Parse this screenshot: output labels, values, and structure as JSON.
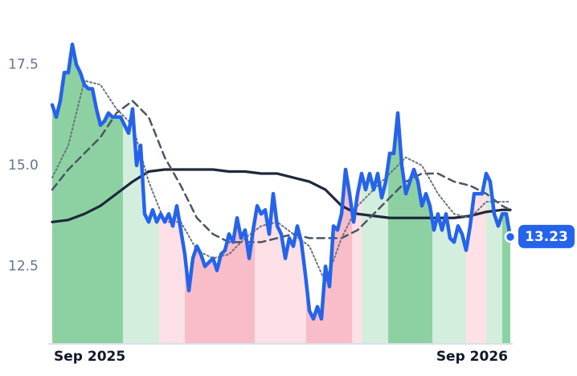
{
  "chart_data": {
    "type": "line",
    "xlim": [
      0,
      114
    ],
    "ylim": [
      10.6,
      19.1
    ],
    "xticks": [
      {
        "value": 0,
        "label": "Sep 2025"
      },
      {
        "value": 114,
        "label": "Sep 2026"
      }
    ],
    "yticks": [
      12.5,
      {
        "value": 15,
        "label": "15.0"
      },
      17.5
    ],
    "regions": [
      {
        "start": 0,
        "end": 17.6,
        "color": "#8dd1a3"
      },
      {
        "start": 17.6,
        "end": 26.6,
        "color": "#d4eedd"
      },
      {
        "start": 26.6,
        "end": 33,
        "color": "#fde1e6"
      },
      {
        "start": 33,
        "end": 50.4,
        "color": "#f8bdc8"
      },
      {
        "start": 50.4,
        "end": 63.2,
        "color": "#fde1e6"
      },
      {
        "start": 63.2,
        "end": 74.6,
        "color": "#f8bdc8"
      },
      {
        "start": 74.6,
        "end": 77,
        "color": "#fde1e6"
      },
      {
        "start": 77,
        "end": 83.6,
        "color": "#d4eedd"
      },
      {
        "start": 83.6,
        "end": 94.6,
        "color": "#8dd1a3"
      },
      {
        "start": 94.6,
        "end": 103,
        "color": "#d4eedd"
      },
      {
        "start": 103,
        "end": 108,
        "color": "#fde1e6"
      },
      {
        "start": 108,
        "end": 112,
        "color": "#d4eedd"
      },
      {
        "start": 112,
        "end": 114,
        "color": "#8dd1a3"
      }
    ],
    "series": [
      {
        "color": "#2563eb",
        "width": 4.5,
        "dash": "none",
        "x": [
          0,
          1,
          2,
          3,
          4,
          5,
          6,
          7,
          8,
          9,
          10,
          11,
          12,
          13,
          14,
          15,
          16,
          17,
          18,
          19,
          20,
          21,
          22,
          23,
          24,
          25,
          26,
          27,
          28,
          29,
          30,
          31,
          32,
          33,
          34,
          35,
          36,
          37,
          38,
          39,
          40,
          41,
          42,
          43,
          44,
          45,
          46,
          47,
          48,
          49,
          50,
          51,
          52,
          53,
          54,
          55,
          56,
          57,
          58,
          59,
          60,
          61,
          62,
          63,
          64,
          65,
          66,
          67,
          68,
          69,
          70,
          71,
          72,
          73,
          74,
          75,
          76,
          77,
          78,
          79,
          80,
          81,
          82,
          83,
          84,
          85,
          86,
          87,
          88,
          89,
          90,
          91,
          92,
          93,
          94,
          95,
          96,
          97,
          98,
          99,
          100,
          101,
          102,
          103,
          104,
          105,
          106,
          107,
          108,
          109,
          110,
          111,
          112,
          113,
          114
        ],
        "values": [
          16.5,
          16.2,
          16.6,
          17.3,
          17.3,
          18.0,
          17.5,
          17.3,
          17.0,
          16.9,
          16.9,
          16.4,
          16.0,
          16.1,
          16.3,
          16.2,
          16.2,
          16.2,
          16.0,
          15.8,
          16.4,
          15.0,
          15.5,
          13.8,
          13.6,
          13.9,
          13.6,
          13.8,
          13.6,
          13.8,
          13.5,
          14.0,
          13.4,
          12.8,
          11.9,
          12.7,
          13.0,
          12.8,
          12.5,
          12.6,
          12.7,
          12.4,
          12.8,
          12.9,
          13.3,
          13.1,
          13.7,
          13.2,
          13.4,
          12.7,
          13.4,
          14.0,
          13.8,
          13.9,
          13.3,
          14.3,
          13.5,
          13.3,
          12.7,
          13.2,
          13.0,
          13.5,
          13.1,
          12.3,
          11.4,
          11.2,
          11.5,
          11.2,
          12.5,
          12.0,
          13.5,
          13.4,
          13.8,
          14.9,
          14.3,
          13.6,
          14.3,
          14.8,
          14.4,
          14.8,
          14.4,
          14.8,
          14.2,
          14.6,
          15.3,
          15.3,
          16.3,
          15.0,
          14.3,
          14.6,
          14.9,
          14.6,
          14.0,
          14.3,
          14.0,
          13.4,
          13.8,
          13.4,
          13.8,
          13.2,
          13.1,
          13.5,
          13.3,
          12.9,
          13.5,
          14.3,
          14.3,
          14.3,
          14.8,
          14.6,
          13.8,
          13.5,
          13.8,
          13.8,
          13.23
        ]
      },
      {
        "color": "#6b7280",
        "width": 2,
        "dash": "2,3",
        "x": [
          0,
          4,
          8,
          12,
          16,
          20,
          24,
          28,
          32,
          36,
          40,
          44,
          48,
          52,
          56,
          60,
          64,
          68,
          72,
          76,
          80,
          84,
          88,
          92,
          96,
          100,
          104,
          108,
          112,
          114
        ],
        "values": [
          14.7,
          15.5,
          17.1,
          17.0,
          16.4,
          16.0,
          14.6,
          13.6,
          13.6,
          12.9,
          12.7,
          12.8,
          13.2,
          13.5,
          13.6,
          13.3,
          13.0,
          12.1,
          13.2,
          14.0,
          14.4,
          14.8,
          15.2,
          15.0,
          14.3,
          13.8,
          13.7,
          14.1,
          14.1,
          14.1
        ]
      },
      {
        "color": "#4b5563",
        "width": 2.5,
        "dash": "9,6",
        "x": [
          0,
          4,
          8,
          12,
          16,
          20,
          24,
          28,
          32,
          36,
          40,
          44,
          48,
          52,
          56,
          60,
          64,
          68,
          72,
          76,
          80,
          84,
          88,
          92,
          96,
          100,
          104,
          108,
          112,
          114
        ],
        "values": [
          14.4,
          14.9,
          15.3,
          15.7,
          16.3,
          16.6,
          16.2,
          15.2,
          14.5,
          13.7,
          13.3,
          13.1,
          13.1,
          13.1,
          13.2,
          13.3,
          13.2,
          13.2,
          13.2,
          13.4,
          13.8,
          14.2,
          14.6,
          14.8,
          14.8,
          14.6,
          14.5,
          14.3,
          14.0,
          13.9
        ]
      },
      {
        "color": "#1e293b",
        "width": 3.2,
        "dash": "none",
        "x": [
          0,
          4,
          8,
          12,
          16,
          20,
          24,
          28,
          32,
          36,
          40,
          44,
          48,
          52,
          56,
          60,
          64,
          68,
          72,
          76,
          80,
          84,
          88,
          92,
          96,
          100,
          104,
          108,
          112,
          114
        ],
        "values": [
          13.6,
          13.65,
          13.8,
          14.0,
          14.3,
          14.6,
          14.85,
          14.9,
          14.9,
          14.9,
          14.9,
          14.85,
          14.85,
          14.8,
          14.8,
          14.7,
          14.6,
          14.4,
          14.0,
          13.8,
          13.75,
          13.7,
          13.7,
          13.7,
          13.7,
          13.7,
          13.75,
          13.85,
          13.9,
          13.9
        ]
      }
    ]
  }
}
